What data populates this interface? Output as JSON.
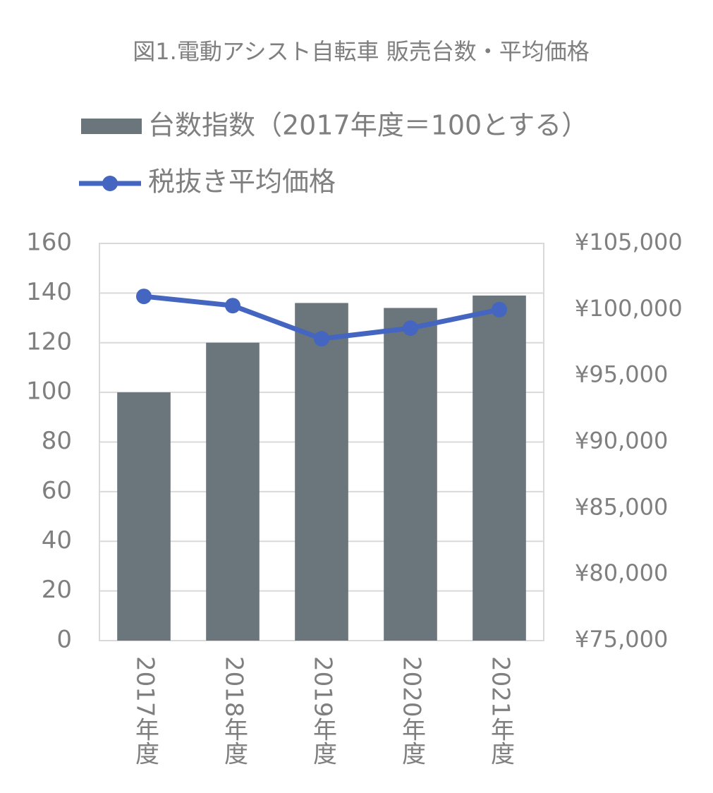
{
  "chart_data": {
    "type": "bar-line",
    "title": "図1.電動アシスト自転車 販売台数・平均価格",
    "categories": [
      "2017年度",
      "2018年度",
      "2019年度",
      "2020年度",
      "2021年度"
    ],
    "series": [
      {
        "name": "台数指数（2017年度＝100とする）",
        "type": "bar",
        "color": "#6b757c",
        "values": [
          100,
          120,
          136,
          134,
          139
        ]
      },
      {
        "name": "税抜き平均価格",
        "type": "line",
        "axis": "y2",
        "color": "#4466c0",
        "values": [
          101000,
          100300,
          97800,
          98600,
          100000
        ]
      }
    ],
    "ylim": [
      0,
      160
    ],
    "yticks": [
      0,
      20,
      40,
      60,
      80,
      100,
      120,
      140,
      160
    ],
    "y2lim": [
      75000,
      105000
    ],
    "y2ticks": [
      {
        "value": 75000,
        "label": "¥75,000"
      },
      {
        "value": 80000,
        "label": "¥80,000"
      },
      {
        "value": 85000,
        "label": "¥85,000"
      },
      {
        "value": 90000,
        "label": "¥90,000"
      },
      {
        "value": 95000,
        "label": "¥95,000"
      },
      {
        "value": 100000,
        "label": "¥100,000"
      },
      {
        "value": 105000,
        "label": "¥105,000"
      }
    ],
    "grid": true,
    "legend": "top"
  }
}
